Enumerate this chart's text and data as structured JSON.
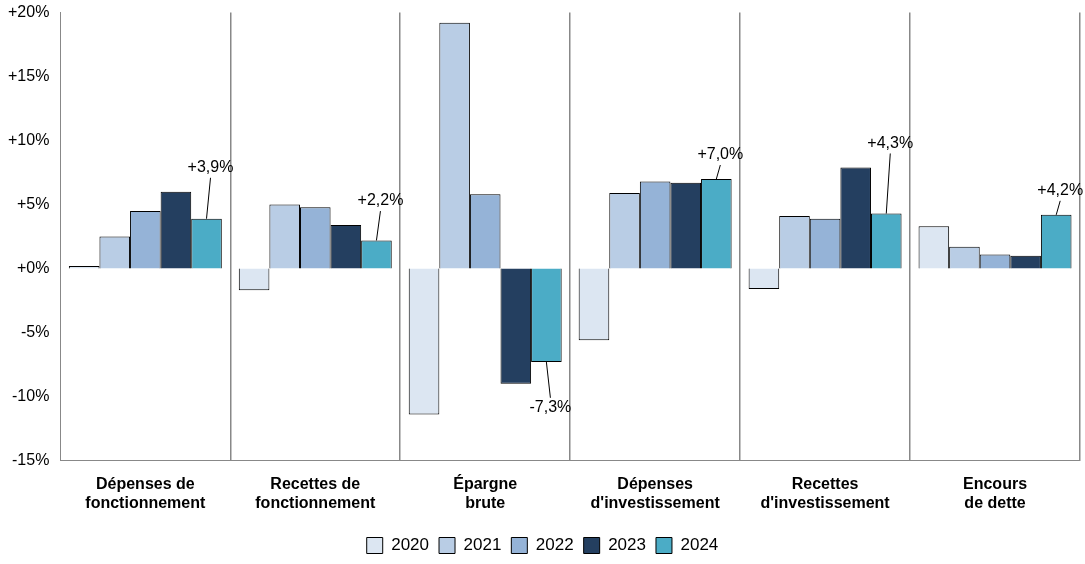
{
  "chart_data": {
    "type": "bar",
    "categories": [
      "Dépenses de fonctionnement",
      "Recettes de fonctionnement",
      "Épargne brute",
      "Dépenses d'investissement",
      "Recettes d'investissement",
      "Encours de dette"
    ],
    "series": [
      {
        "name": "2020",
        "color": "#dce6f2",
        "values": [
          0.2,
          -1.7,
          -11.4,
          -5.6,
          -1.6,
          3.3
        ]
      },
      {
        "name": "2021",
        "color": "#b9cde5",
        "values": [
          2.5,
          5.0,
          19.2,
          5.9,
          4.1,
          1.7
        ]
      },
      {
        "name": "2022",
        "color": "#95b3d7",
        "values": [
          4.5,
          4.8,
          5.8,
          6.8,
          3.9,
          1.1
        ]
      },
      {
        "name": "2023",
        "color": "#243f60",
        "values": [
          6.0,
          3.4,
          -9.0,
          6.7,
          7.9,
          1.0
        ]
      },
      {
        "name": "2024",
        "color": "#4bacc6",
        "values": [
          3.9,
          2.2,
          -7.3,
          7.0,
          4.3,
          4.2
        ],
        "value_labels": [
          "+3,9%",
          "+2,2%",
          "-7,3%",
          "+7,0%",
          "+4,3%",
          "+4,2%"
        ]
      }
    ],
    "ylim": [
      -15,
      20
    ],
    "yticks": [
      {
        "value": -15,
        "label": "-15%"
      },
      {
        "value": -10,
        "label": "-10%"
      },
      {
        "value": -5,
        "label": "-5%"
      },
      {
        "value": 0,
        "label": "+0%"
      },
      {
        "value": 5,
        "label": "+5%"
      },
      {
        "value": 10,
        "label": "+10%"
      },
      {
        "value": 15,
        "label": "+15%"
      },
      {
        "value": 20,
        "label": "+20%"
      }
    ],
    "grid": "x",
    "legend": "bottom"
  }
}
